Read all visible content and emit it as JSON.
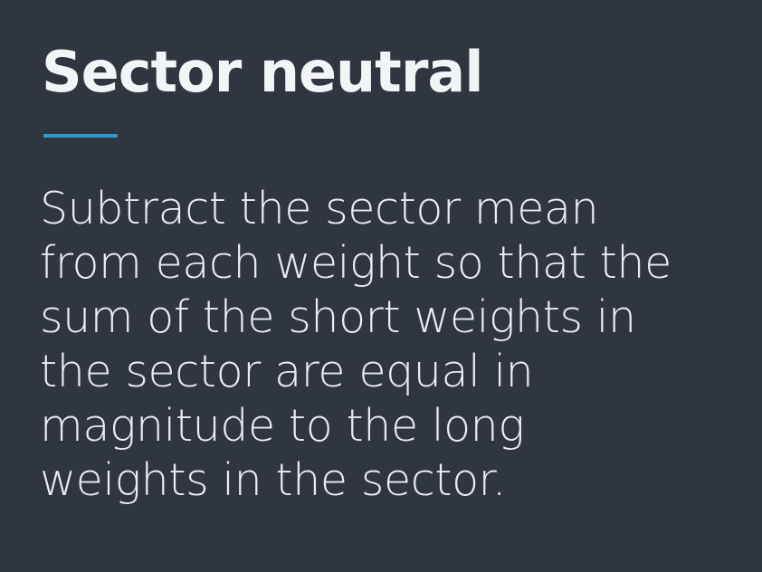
{
  "slide": {
    "title": "Sector neutral",
    "body_lines": [
      "Subtract the sector mean",
      "from each weight so that the",
      "sum of the short weights in",
      "the sector are equal in",
      "magnitude to the long",
      "weights in the sector."
    ]
  },
  "colors": {
    "background": "#2f3640",
    "title": "#f3f4f6",
    "body": "#ececee",
    "accent": "#2d9ad6"
  }
}
